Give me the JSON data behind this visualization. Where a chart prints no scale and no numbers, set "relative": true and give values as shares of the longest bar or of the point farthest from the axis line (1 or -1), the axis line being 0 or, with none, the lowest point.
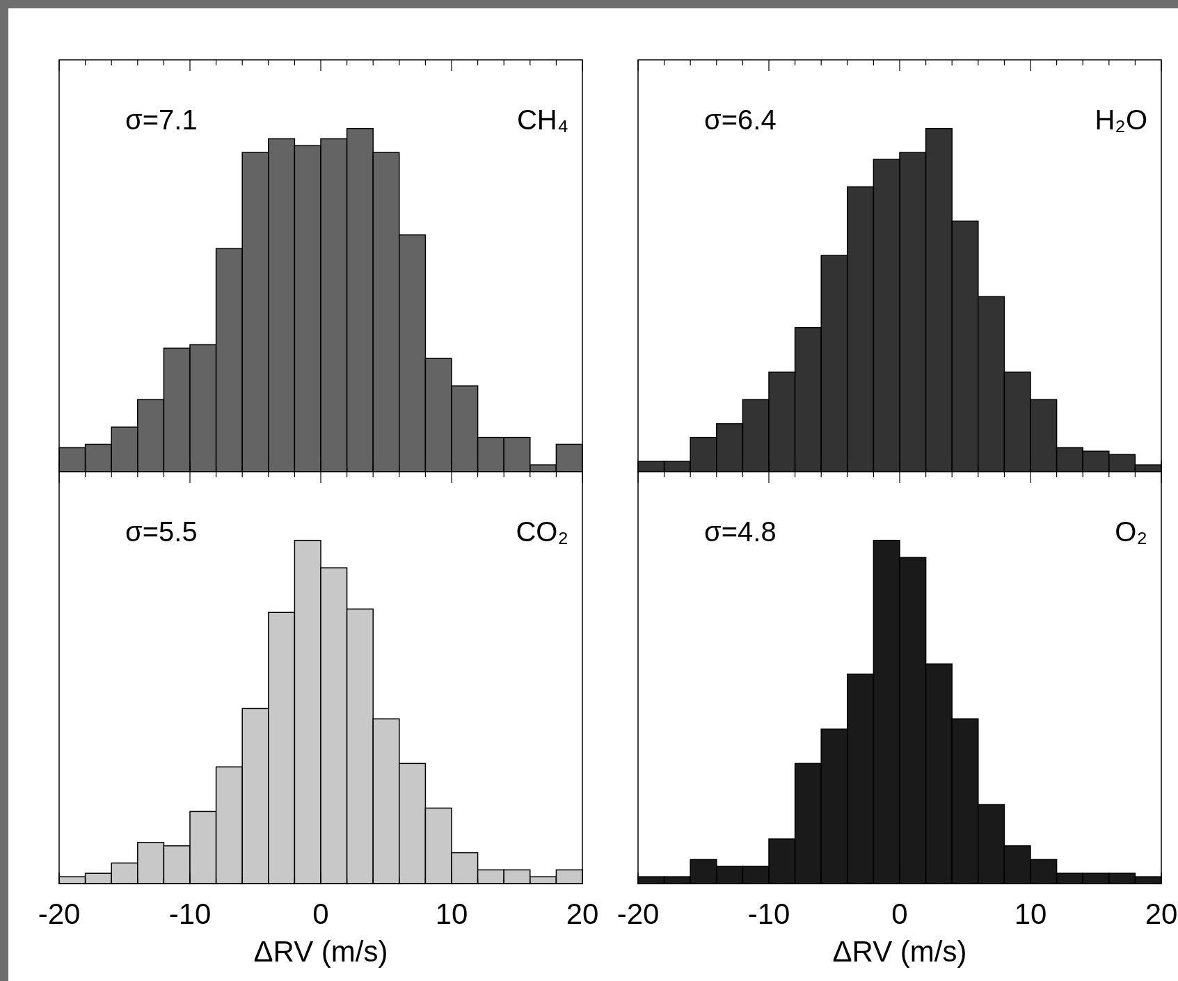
{
  "chart_data": [
    {
      "type": "bar",
      "relative": true,
      "x": [
        -19,
        -17,
        -15,
        -13,
        -11,
        -9,
        -7,
        -5,
        -3,
        -1,
        1,
        3,
        5,
        7,
        9,
        11,
        13,
        15,
        17,
        19
      ],
      "color": "#646464",
      "tick_labels": false,
      "xlim": [
        -20,
        20
      ],
      "xticks": [
        -20,
        {
          "value": -18,
          "label": null
        },
        {
          "value": -16,
          "label": null
        },
        {
          "value": -14,
          "label": null
        },
        {
          "value": -12,
          "label": null
        },
        -10,
        {
          "value": -8,
          "label": null
        },
        {
          "value": -6,
          "label": null
        },
        {
          "value": -4,
          "label": null
        },
        {
          "value": -2,
          "label": null
        },
        0,
        {
          "value": 2,
          "label": null
        },
        {
          "value": 4,
          "label": null
        },
        {
          "value": 6,
          "label": null
        },
        {
          "value": 8,
          "label": null
        },
        10,
        {
          "value": 12,
          "label": null
        },
        {
          "value": 14,
          "label": null
        },
        {
          "value": 16,
          "label": null
        },
        {
          "value": 18,
          "label": null
        },
        20
      ],
      "values": [
        0.07,
        0.08,
        0.13,
        0.21,
        0.36,
        0.37,
        0.65,
        0.93,
        0.97,
        0.95,
        0.97,
        1,
        0.93,
        0.69,
        0.33,
        0.25,
        0.1,
        0.1,
        0.02,
        0.08
      ],
      "annotations": [
        "σ=7.1",
        "CH₄"
      ]
    },
    {
      "type": "bar",
      "relative": true,
      "x": [
        -19,
        -17,
        -15,
        -13,
        -11,
        -9,
        -7,
        -5,
        -3,
        -1,
        1,
        3,
        5,
        7,
        9,
        11,
        13,
        15,
        17,
        19
      ],
      "color": "#333333",
      "tick_labels": false,
      "xlim": [
        -20,
        20
      ],
      "xticks": [
        -20,
        {
          "value": -18,
          "label": null
        },
        {
          "value": -16,
          "label": null
        },
        {
          "value": -14,
          "label": null
        },
        {
          "value": -12,
          "label": null
        },
        -10,
        {
          "value": -8,
          "label": null
        },
        {
          "value": -6,
          "label": null
        },
        {
          "value": -4,
          "label": null
        },
        {
          "value": -2,
          "label": null
        },
        0,
        {
          "value": 2,
          "label": null
        },
        {
          "value": 4,
          "label": null
        },
        {
          "value": 6,
          "label": null
        },
        {
          "value": 8,
          "label": null
        },
        10,
        {
          "value": 12,
          "label": null
        },
        {
          "value": 14,
          "label": null
        },
        {
          "value": 16,
          "label": null
        },
        {
          "value": 18,
          "label": null
        },
        20
      ],
      "values": [
        0.03,
        0.03,
        0.1,
        0.14,
        0.21,
        0.29,
        0.42,
        0.63,
        0.83,
        0.91,
        0.93,
        1,
        0.73,
        0.51,
        0.29,
        0.21,
        0.07,
        0.06,
        0.05,
        0.02
      ],
      "annotations": [
        "σ=6.4",
        "H₂O"
      ]
    },
    {
      "type": "bar",
      "relative": true,
      "x": [
        -19,
        -17,
        -15,
        -13,
        -11,
        -9,
        -7,
        -5,
        -3,
        -1,
        1,
        3,
        5,
        7,
        9,
        11,
        13,
        15,
        17,
        19
      ],
      "color": "#c8c8c8",
      "tick_labels": "x",
      "xlim": [
        -20,
        20
      ],
      "xlabel": "ΔRV (m/s)",
      "xticks": [
        -20,
        {
          "value": -18,
          "label": null
        },
        {
          "value": -16,
          "label": null
        },
        {
          "value": -14,
          "label": null
        },
        {
          "value": -12,
          "label": null
        },
        -10,
        {
          "value": -8,
          "label": null
        },
        {
          "value": -6,
          "label": null
        },
        {
          "value": -4,
          "label": null
        },
        {
          "value": -2,
          "label": null
        },
        0,
        {
          "value": 2,
          "label": null
        },
        {
          "value": 4,
          "label": null
        },
        {
          "value": 6,
          "label": null
        },
        {
          "value": 8,
          "label": null
        },
        10,
        {
          "value": 12,
          "label": null
        },
        {
          "value": 14,
          "label": null
        },
        {
          "value": 16,
          "label": null
        },
        {
          "value": 18,
          "label": null
        },
        20
      ],
      "values": [
        0.02,
        0.03,
        0.06,
        0.12,
        0.11,
        0.21,
        0.34,
        0.51,
        0.79,
        1,
        0.92,
        0.8,
        0.48,
        0.35,
        0.22,
        0.09,
        0.04,
        0.04,
        0.02,
        0.04
      ],
      "annotations": [
        "σ=5.5",
        "CO₂"
      ]
    },
    {
      "type": "bar",
      "relative": true,
      "x": [
        -19,
        -17,
        -15,
        -13,
        -11,
        -9,
        -7,
        -5,
        -3,
        -1,
        1,
        3,
        5,
        7,
        9,
        11,
        13,
        15,
        17,
        19
      ],
      "color": "#1a1a1a",
      "tick_labels": "x",
      "xlim": [
        -20,
        20
      ],
      "xlabel": "ΔRV (m/s)",
      "xticks": [
        -20,
        {
          "value": -18,
          "label": null
        },
        {
          "value": -16,
          "label": null
        },
        {
          "value": -14,
          "label": null
        },
        {
          "value": -12,
          "label": null
        },
        -10,
        {
          "value": -8,
          "label": null
        },
        {
          "value": -6,
          "label": null
        },
        {
          "value": -4,
          "label": null
        },
        {
          "value": -2,
          "label": null
        },
        0,
        {
          "value": 2,
          "label": null
        },
        {
          "value": 4,
          "label": null
        },
        {
          "value": 6,
          "label": null
        },
        {
          "value": 8,
          "label": null
        },
        10,
        {
          "value": 12,
          "label": null
        },
        {
          "value": 14,
          "label": null
        },
        {
          "value": 16,
          "label": null
        },
        {
          "value": 18,
          "label": null
        },
        20
      ],
      "values": [
        0.02,
        0.02,
        0.07,
        0.05,
        0.05,
        0.13,
        0.35,
        0.45,
        0.61,
        1,
        0.95,
        0.64,
        0.48,
        0.23,
        0.11,
        0.07,
        0.03,
        0.03,
        0.03,
        0.02
      ],
      "annotations": [
        "σ=4.8",
        "O₂"
      ]
    }
  ]
}
